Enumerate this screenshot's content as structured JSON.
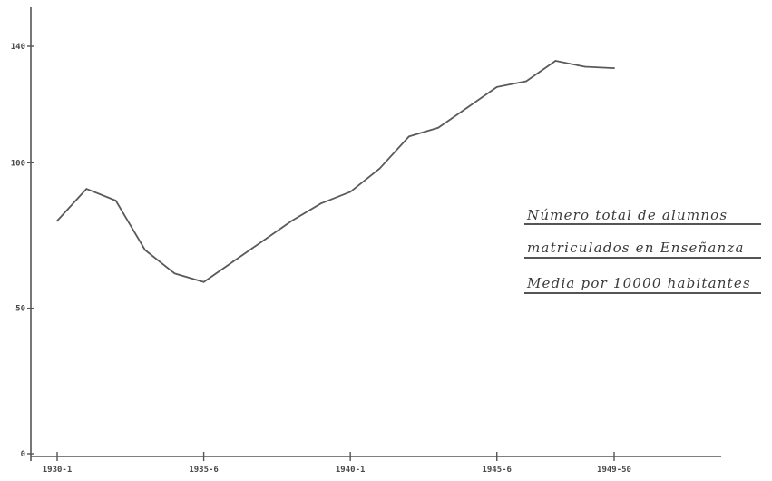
{
  "colors": {
    "line": "#5a5a5a",
    "axis": "#555555",
    "text": "#3a3a3a",
    "background": "#ffffff"
  },
  "chart_data": {
    "type": "line",
    "title_lines": [
      "Número total de alumnos",
      "matriculados en Enseñanza",
      "Media por 10000 habitantes"
    ],
    "xlabel": "",
    "ylabel": "",
    "y_ticks": [
      {
        "value": 0,
        "label": "0"
      },
      {
        "value": 50,
        "label": "50"
      },
      {
        "value": 100,
        "label": "100"
      },
      {
        "value": 140,
        "label": "140"
      }
    ],
    "ylim": [
      0,
      150
    ],
    "x_ticks": [
      {
        "index": 0,
        "label": "1930-1"
      },
      {
        "index": 5,
        "label": "1935-6"
      },
      {
        "index": 10,
        "label": "1940-1"
      },
      {
        "index": 15,
        "label": "1945-6"
      },
      {
        "index": 19,
        "label": "1949-50"
      }
    ],
    "xlim": [
      -1,
      23
    ],
    "grid": false,
    "legend": "none",
    "series": [
      {
        "values": [
          80,
          91,
          87,
          70,
          62,
          59,
          66,
          73,
          80,
          86,
          90,
          98,
          109,
          112,
          119,
          126,
          128,
          135,
          133,
          132.5
        ]
      }
    ]
  }
}
